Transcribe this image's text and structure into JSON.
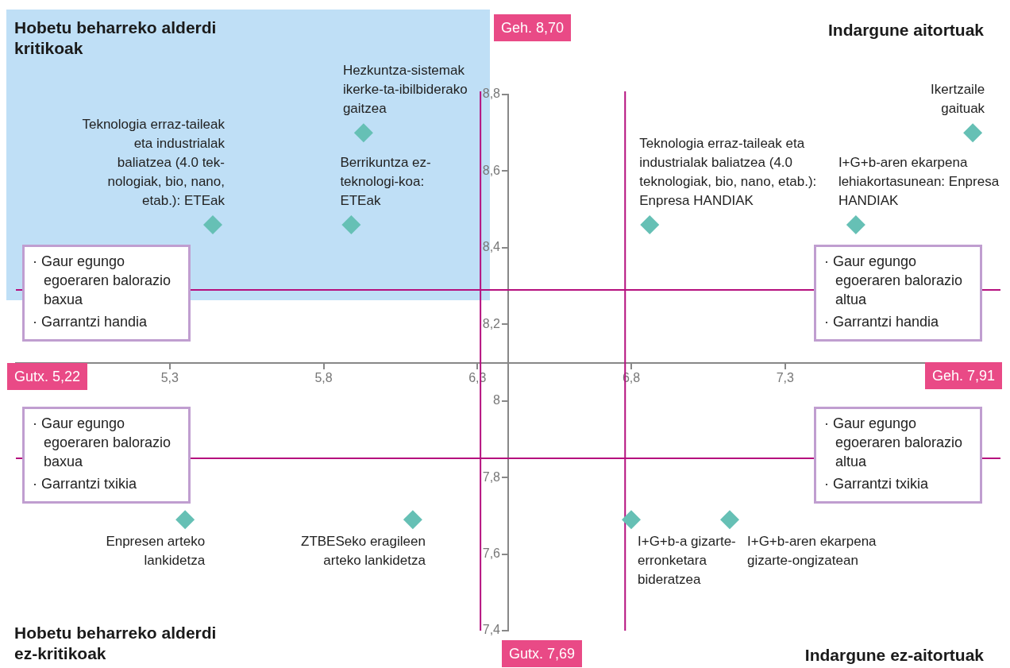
{
  "chart_data": {
    "type": "scatter",
    "xlim": [
      4.8,
      8.0
    ],
    "ylim": [
      7.4,
      8.8
    ],
    "xticks": [
      {
        "value": 5.3,
        "label": "5,3"
      },
      {
        "value": 5.8,
        "label": "5,8"
      },
      {
        "value": 6.3,
        "label": "6,3"
      },
      {
        "value": 6.8,
        "label": "6,8"
      },
      {
        "value": 7.3,
        "label": "7,3"
      }
    ],
    "yticks": [
      {
        "value": 7.4,
        "label": "7,4"
      },
      {
        "value": 7.6,
        "label": "7,6"
      },
      {
        "value": 7.8,
        "label": "7,8"
      },
      8,
      {
        "value": 8.2,
        "label": "8,2"
      },
      {
        "value": 8.4,
        "label": "8,4"
      },
      {
        "value": 8.6,
        "label": "8,6"
      },
      {
        "value": 8.8,
        "label": "8,8"
      }
    ],
    "series": [
      {
        "color": "#66c0b5",
        "x": [
          5.44,
          5.93,
          5.89,
          6.86,
          7.91,
          7.53,
          5.35,
          6.09,
          6.8,
          7.12
        ],
        "values": [
          8.46,
          8.7,
          8.46,
          8.46,
          8.7,
          8.46,
          7.69,
          7.69,
          7.69,
          7.69
        ]
      }
    ],
    "marker": "diamond",
    "grid": false,
    "legend": false,
    "ref_lines": [
      {
        "axis": "x",
        "value": 6.31,
        "color": "#b5107e"
      },
      {
        "axis": "y",
        "value": 8.29,
        "color": "#b5107e"
      },
      {
        "axis": "x",
        "value": 6.78,
        "color": "#b5107e"
      },
      {
        "axis": "y",
        "value": 7.85,
        "color": "#b5107e"
      }
    ],
    "annotations": [
      {
        "text": "Teknologia erraz-taileak eta industrialak baliatzea (4.0 tek-nologiak, bio, nano, etab.): ETEak",
        "x": 5.44,
        "y": 8.46
      },
      {
        "text": "Hezkuntza-sistemak ikerke-ta-ibilbiderako gaitzea",
        "x": 5.93,
        "y": 8.7
      },
      {
        "text": "Berrikuntza ez-teknologi-koa: ETEak",
        "x": 5.89,
        "y": 8.46
      },
      {
        "text": "Teknologia erraz-taileak eta industrialak baliatzea (4.0 teknologiak, bio, nano, etab.): Enpresa HANDIAK",
        "x": 6.86,
        "y": 8.46
      },
      {
        "text": "Ikertzaile gaituak",
        "x": 7.91,
        "y": 8.7
      },
      {
        "text": "I+G+b-aren ekarpena lehiakortasunean: Enpresa HANDIAK",
        "x": 7.53,
        "y": 8.46
      },
      {
        "text": "Enpresen arteko lankidetza",
        "x": 5.35,
        "y": 7.69
      },
      {
        "text": "ZTBESeko eragileen arteko lankidetza",
        "x": 6.09,
        "y": 7.69
      },
      {
        "text": "I+G+b-a gizarte-erronketara bideratzea",
        "x": 6.8,
        "y": 7.69
      },
      {
        "text": "I+G+b-aren ekarpena gizarte-ongizatean",
        "x": 7.12,
        "y": 7.69
      },
      "Hobetu beharreko alderdi kritikoak",
      "Indargune aitortuak",
      "Hobetu beharreko alderdi ez-kritikoak",
      "Indargune ez-aitortuak",
      "Geh. 8,70",
      "Gutx. 5,22",
      "Geh. 7,91",
      "Gutx. 7,69",
      "· Gaur egungo egoeraren balorazio baxua",
      "· Garrantzi handia",
      "· Gaur egungo egoeraren balorazio altua",
      "· Garrantzi handia",
      "· Gaur egungo egoeraren balorazio baxua",
      "· Garrantzi txikia",
      "· Gaur egungo egoeraren balorazio altua",
      "· Garrantzi txikia"
    ]
  }
}
